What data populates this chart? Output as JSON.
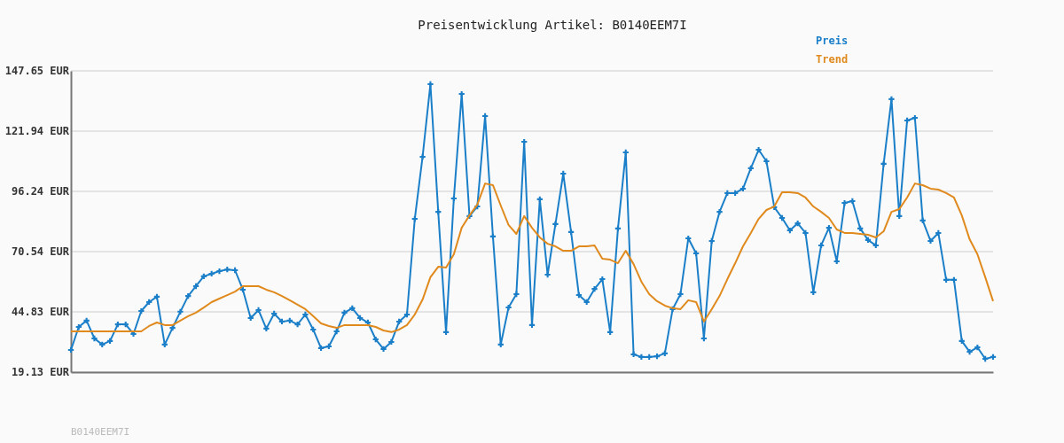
{
  "chart_data": {
    "type": "line",
    "title": "Preisentwicklung Artikel: B0140EEM7I",
    "annotations": [
      "B0140EEM7I"
    ],
    "categories": [
      null,
      null,
      null,
      null,
      null,
      null,
      null,
      null,
      null,
      null,
      null,
      null,
      null,
      null,
      null,
      null,
      null,
      null,
      null,
      null,
      null,
      null,
      null,
      null,
      null,
      null,
      null,
      null,
      null,
      null,
      null,
      null,
      null,
      null,
      null,
      null,
      null,
      null,
      null,
      null,
      null,
      null,
      null,
      null,
      null,
      null,
      null,
      null,
      null,
      null,
      null,
      null,
      null,
      null,
      null,
      null,
      null,
      null,
      null,
      null,
      null,
      null,
      null,
      null,
      null,
      null,
      null,
      null,
      null,
      null,
      null,
      null,
      null,
      null,
      null,
      null,
      null,
      null,
      null,
      null,
      null,
      null,
      null,
      null,
      null,
      null,
      null,
      null,
      null,
      null,
      null,
      null,
      null,
      null,
      null,
      null,
      null,
      null,
      null,
      null,
      null,
      null,
      null,
      null,
      null,
      null,
      null,
      null,
      null,
      null,
      null,
      null,
      null,
      null,
      null,
      null,
      null,
      null,
      null
    ],
    "series": [
      {
        "name": "Preis",
        "color": "#1a7fc8",
        "marker": "cross",
        "values": [
          28.6,
          38.4,
          41.1,
          33.5,
          30.9,
          32.4,
          39.5,
          39.5,
          35.4,
          45.2,
          49.0,
          51.3,
          30.9,
          38.0,
          44.9,
          51.6,
          55.8,
          60.0,
          61.1,
          62.2,
          62.9,
          62.6,
          54.3,
          42.2,
          45.6,
          37.7,
          44.1,
          40.7,
          41.1,
          39.5,
          43.7,
          37.3,
          29.4,
          30.1,
          36.5,
          44.5,
          46.4,
          42.2,
          40.3,
          33.1,
          29.0,
          32.0,
          40.7,
          43.7,
          84.5,
          111.0,
          142.0,
          87.5,
          36.2,
          93.2,
          137.8,
          85.7,
          89.8,
          128.4,
          77.0,
          30.9,
          46.7,
          52.4,
          117.4,
          39.2,
          92.9,
          60.7,
          82.3,
          103.8,
          78.9,
          52.0,
          49.0,
          54.6,
          58.8,
          36.2,
          80.4,
          112.9,
          26.7,
          25.6,
          25.6,
          25.9,
          27.1,
          46.0,
          52.4,
          76.2,
          69.8,
          33.5,
          75.1,
          87.5,
          95.5,
          95.5,
          97.4,
          106.1,
          114.0,
          109.1,
          89.5,
          84.9,
          79.6,
          82.6,
          78.5,
          53.2,
          73.2,
          80.7,
          66.4,
          91.3,
          92.1,
          80.4,
          75.5,
          73.2,
          108.0,
          135.6,
          85.7,
          126.5,
          127.6,
          83.8,
          75.1,
          78.5,
          58.5,
          58.5,
          32.4,
          27.8,
          29.7,
          24.8,
          25.6
        ]
      },
      {
        "name": "Trend",
        "color": "#e08a1e",
        "marker": "none",
        "values": [
          36.5,
          36.5,
          36.5,
          36.5,
          36.5,
          36.5,
          36.5,
          36.5,
          36.5,
          36.5,
          38.8,
          40.3,
          39.2,
          39.2,
          41.1,
          43.0,
          44.5,
          46.7,
          49.0,
          50.5,
          52.0,
          53.5,
          55.8,
          55.8,
          55.8,
          54.3,
          53.2,
          51.6,
          49.8,
          47.9,
          46.0,
          43.0,
          39.9,
          38.8,
          38.0,
          39.2,
          39.2,
          39.2,
          39.2,
          38.4,
          36.9,
          36.2,
          37.3,
          39.2,
          43.7,
          50.1,
          59.6,
          64.1,
          63.7,
          69.4,
          80.7,
          86.0,
          90.6,
          99.6,
          98.9,
          90.2,
          81.9,
          78.1,
          85.7,
          80.7,
          76.6,
          73.9,
          72.8,
          70.9,
          70.9,
          72.8,
          72.8,
          73.2,
          67.5,
          67.1,
          65.6,
          70.9,
          65.2,
          57.7,
          52.4,
          49.4,
          47.5,
          46.4,
          46.0,
          49.8,
          49.0,
          40.7,
          46.0,
          51.6,
          58.8,
          65.6,
          72.8,
          78.5,
          84.5,
          88.3,
          89.8,
          95.9,
          95.9,
          95.5,
          93.6,
          89.8,
          87.5,
          84.9,
          80.0,
          78.5,
          78.5,
          78.1,
          77.7,
          76.6,
          79.2,
          87.5,
          88.7,
          93.6,
          99.6,
          98.9,
          97.4,
          97.0,
          95.5,
          93.6,
          86.0,
          75.8,
          69.4,
          59.6,
          49.4
        ]
      }
    ],
    "ylim": [
      19.13,
      147.65
    ],
    "yticks": [
      {
        "value": 19.13,
        "label": "19.13 EUR"
      },
      {
        "value": 44.83,
        "label": "44.83 EUR"
      },
      {
        "value": 70.54,
        "label": "70.54 EUR"
      },
      {
        "value": 96.24,
        "label": "96.24 EUR"
      },
      {
        "value": 121.94,
        "label": "121.94 EUR"
      },
      {
        "value": 147.65,
        "label": "147.65 EUR"
      }
    ],
    "grid": "y",
    "legend": "top right",
    "line_style": "solid"
  }
}
